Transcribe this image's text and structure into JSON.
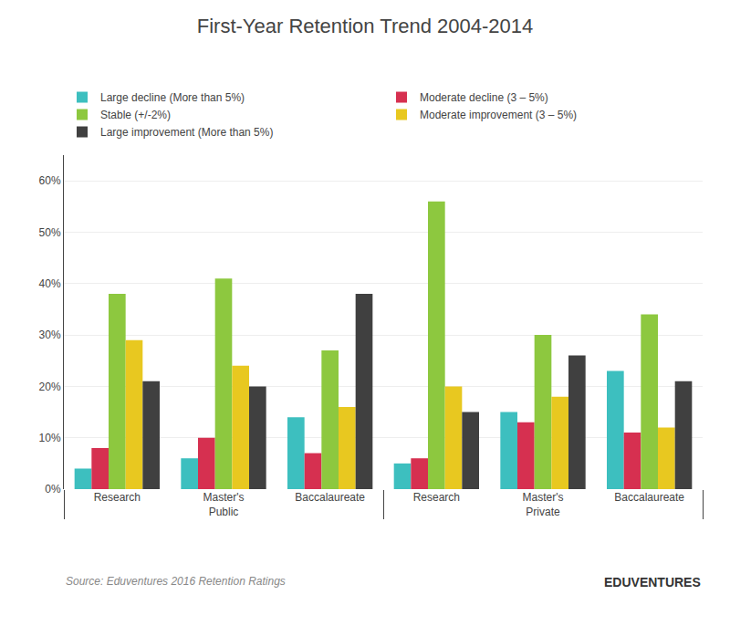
{
  "chart_data": {
    "type": "bar",
    "title": "First-Year Retention Trend 2004-2014",
    "categories": [
      "Research",
      "Master's",
      "Baccalaureate",
      "Research",
      "Master's",
      "Baccalaureate"
    ],
    "category_groups": [
      "Public",
      "Public",
      "Public",
      "Private",
      "Private",
      "Private"
    ],
    "series": [
      {
        "name": "Large decline (More than 5%)",
        "color": "#3dbfbf",
        "values": [
          4,
          6,
          14,
          5,
          15,
          23
        ]
      },
      {
        "name": "Moderate decline (3 – 5%)",
        "color": "#d63050",
        "values": [
          8,
          10,
          7,
          6,
          13,
          11
        ]
      },
      {
        "name": "Stable (+/-2%)",
        "color": "#8dc83f",
        "values": [
          38,
          41,
          27,
          56,
          30,
          34
        ]
      },
      {
        "name": "Moderate improvement (3 – 5%)",
        "color": "#e8c820",
        "values": [
          29,
          24,
          16,
          20,
          18,
          12
        ]
      },
      {
        "name": "Large improvement (More than 5%)",
        "color": "#404040",
        "values": [
          21,
          20,
          38,
          15,
          26,
          21
        ]
      }
    ],
    "ylim": [
      0,
      65
    ],
    "yticks": [
      {
        "value": 0,
        "label": "0%"
      },
      {
        "value": 10,
        "label": "10%"
      },
      {
        "value": 20,
        "label": "20%"
      },
      {
        "value": 30,
        "label": "30%"
      },
      {
        "value": 40,
        "label": "40%"
      },
      {
        "value": 50,
        "label": "50%"
      },
      {
        "value": 60,
        "label": "60%"
      }
    ],
    "grid": true,
    "legend": "top",
    "annotations": [
      "Source: Eduventures 2016 Retention Ratings",
      "EDUVENTURES"
    ]
  }
}
